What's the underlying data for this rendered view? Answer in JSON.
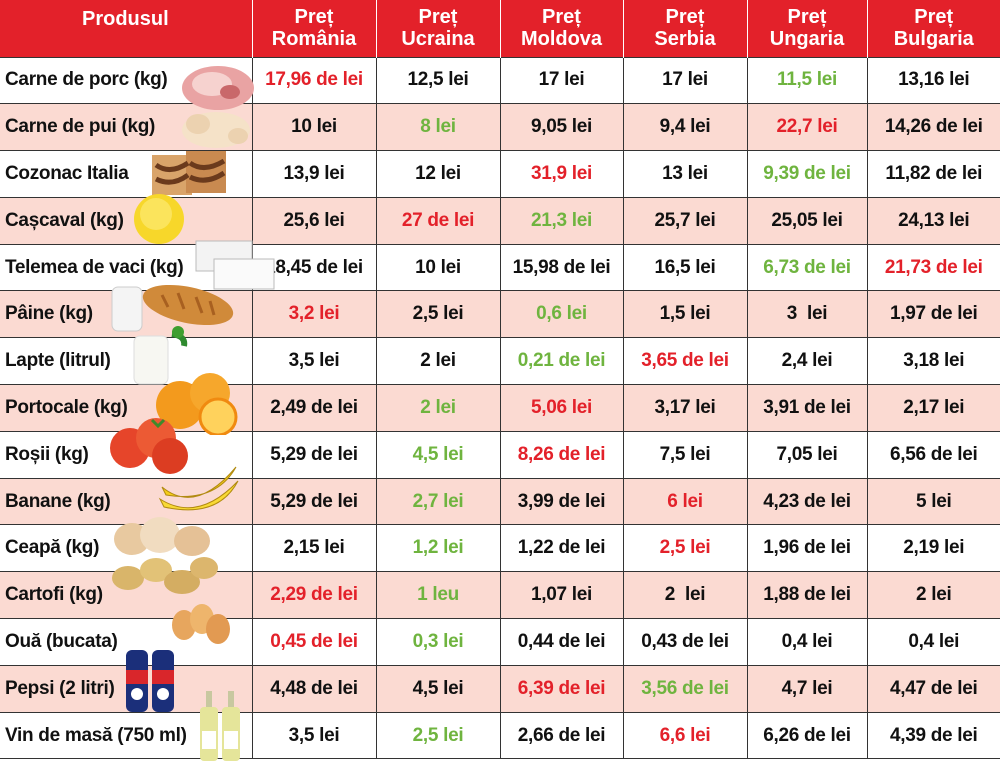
{
  "header": {
    "product_label": "Produsul",
    "columns": [
      {
        "line1": "Preț",
        "line2": "România"
      },
      {
        "line1": "Preț",
        "line2": "Ucraina"
      },
      {
        "line1": "Preț",
        "line2": "Moldova"
      },
      {
        "line1": "Preț",
        "line2": "Serbia"
      },
      {
        "line1": "Preț",
        "line2": "Ungaria"
      },
      {
        "line1": "Preț",
        "line2": "Bulgaria"
      }
    ]
  },
  "colors": {
    "header_bg": "#e3212a",
    "stripe": "#fbdad2",
    "max_price": "#e3212a",
    "min_price": "#6fb43f"
  },
  "rows": [
    {
      "product": "Carne de porc (kg)",
      "icon": "pork-meat-icon",
      "prices": [
        {
          "text": "17,96 de lei",
          "hl": "red"
        },
        {
          "text": "12,5 lei",
          "hl": ""
        },
        {
          "text": "17 lei",
          "hl": ""
        },
        {
          "text": "17 lei",
          "hl": ""
        },
        {
          "text": "11,5 lei",
          "hl": "green"
        },
        {
          "text": "13,16 lei",
          "hl": ""
        }
      ]
    },
    {
      "product": "Carne de pui (kg)",
      "icon": "chicken-icon",
      "prices": [
        {
          "text": "10 lei",
          "hl": ""
        },
        {
          "text": "8 lei",
          "hl": "green"
        },
        {
          "text": "9,05 lei",
          "hl": ""
        },
        {
          "text": "9,4 lei",
          "hl": ""
        },
        {
          "text": "22,7 lei",
          "hl": "red"
        },
        {
          "text": "14,26 de lei",
          "hl": ""
        }
      ]
    },
    {
      "product": "Cozonac Italia",
      "icon": "cozonac-icon",
      "prices": [
        {
          "text": "13,9 lei",
          "hl": ""
        },
        {
          "text": "12 lei",
          "hl": ""
        },
        {
          "text": "31,9 lei",
          "hl": "red"
        },
        {
          "text": "13 lei",
          "hl": ""
        },
        {
          "text": "9,39 de lei",
          "hl": "green"
        },
        {
          "text": "11,82 de lei",
          "hl": ""
        }
      ]
    },
    {
      "product": "Cașcaval (kg)",
      "icon": "cheese-icon",
      "prices": [
        {
          "text": "25,6 lei",
          "hl": ""
        },
        {
          "text": "27 de lei",
          "hl": "red"
        },
        {
          "text": "21,3 lei",
          "hl": "green"
        },
        {
          "text": "25,7 lei",
          "hl": ""
        },
        {
          "text": "25,05 lei",
          "hl": ""
        },
        {
          "text": "24,13 lei",
          "hl": ""
        }
      ]
    },
    {
      "product": "Telemea de vaci (kg)",
      "icon": "telemea-icon",
      "prices": [
        {
          "text": "18,45 de lei",
          "hl": ""
        },
        {
          "text": "10 lei",
          "hl": ""
        },
        {
          "text": "15,98 de lei",
          "hl": ""
        },
        {
          "text": "16,5 lei",
          "hl": ""
        },
        {
          "text": "6,73 de lei",
          "hl": "green"
        },
        {
          "text": "21,73 de lei",
          "hl": "red"
        }
      ]
    },
    {
      "product": "Pâine (kg)",
      "icon": "bread-icon",
      "prices": [
        {
          "text": "3,2 lei",
          "hl": "red"
        },
        {
          "text": "2,5 lei",
          "hl": ""
        },
        {
          "text": "0,6 lei",
          "hl": "green"
        },
        {
          "text": "1,5 lei",
          "hl": ""
        },
        {
          "text": "3  lei",
          "hl": ""
        },
        {
          "text": "1,97 de lei",
          "hl": ""
        }
      ]
    },
    {
      "product": "Lapte (litrul)",
      "icon": "milk-icon",
      "prices": [
        {
          "text": "3,5 lei",
          "hl": ""
        },
        {
          "text": "2 lei",
          "hl": ""
        },
        {
          "text": "0,21 de lei",
          "hl": "green"
        },
        {
          "text": "3,65 de lei",
          "hl": "red"
        },
        {
          "text": "2,4 lei",
          "hl": ""
        },
        {
          "text": "3,18 lei",
          "hl": ""
        }
      ]
    },
    {
      "product": "Portocale (kg)",
      "icon": "orange-icon",
      "prices": [
        {
          "text": "2,49 de lei",
          "hl": ""
        },
        {
          "text": "2 lei",
          "hl": "green"
        },
        {
          "text": "5,06 lei",
          "hl": "red"
        },
        {
          "text": "3,17 lei",
          "hl": ""
        },
        {
          "text": "3,91 de lei",
          "hl": ""
        },
        {
          "text": "2,17 lei",
          "hl": ""
        }
      ]
    },
    {
      "product": "Roșii (kg)",
      "icon": "tomato-icon",
      "prices": [
        {
          "text": "5,29 de lei",
          "hl": ""
        },
        {
          "text": "4,5 lei",
          "hl": "green"
        },
        {
          "text": "8,26 de lei",
          "hl": "red"
        },
        {
          "text": "7,5 lei",
          "hl": ""
        },
        {
          "text": "7,05 lei",
          "hl": ""
        },
        {
          "text": "6,56 de lei",
          "hl": ""
        }
      ]
    },
    {
      "product": "Banane (kg)",
      "icon": "banana-icon",
      "prices": [
        {
          "text": "5,29 de lei",
          "hl": ""
        },
        {
          "text": "2,7 lei",
          "hl": "green"
        },
        {
          "text": "3,99 de lei",
          "hl": ""
        },
        {
          "text": "6 lei",
          "hl": "red"
        },
        {
          "text": "4,23 de lei",
          "hl": ""
        },
        {
          "text": "5 lei",
          "hl": ""
        }
      ]
    },
    {
      "product": "Ceapă (kg)",
      "icon": "onion-icon",
      "prices": [
        {
          "text": "2,15 lei",
          "hl": ""
        },
        {
          "text": "1,2 lei",
          "hl": "green"
        },
        {
          "text": "1,22 de lei",
          "hl": ""
        },
        {
          "text": "2,5 lei",
          "hl": "red"
        },
        {
          "text": "1,96 de lei",
          "hl": ""
        },
        {
          "text": "2,19 lei",
          "hl": ""
        }
      ]
    },
    {
      "product": "Cartofi (kg)",
      "icon": "potato-icon",
      "prices": [
        {
          "text": "2,29 de lei",
          "hl": "red"
        },
        {
          "text": "1 leu",
          "hl": "green"
        },
        {
          "text": "1,07 lei",
          "hl": ""
        },
        {
          "text": "2  lei",
          "hl": ""
        },
        {
          "text": "1,88 de lei",
          "hl": ""
        },
        {
          "text": "2 lei",
          "hl": ""
        }
      ]
    },
    {
      "product": "Ouă (bucata)",
      "icon": "eggs-icon",
      "prices": [
        {
          "text": "0,45 de lei",
          "hl": "red"
        },
        {
          "text": "0,3 lei",
          "hl": "green"
        },
        {
          "text": "0,44 de lei",
          "hl": ""
        },
        {
          "text": "0,43 de lei",
          "hl": ""
        },
        {
          "text": "0,4 lei",
          "hl": ""
        },
        {
          "text": "0,4 lei",
          "hl": ""
        }
      ]
    },
    {
      "product": "Pepsi (2 litri)",
      "icon": "pepsi-bottles-icon",
      "prices": [
        {
          "text": "4,48 de lei",
          "hl": ""
        },
        {
          "text": "4,5 lei",
          "hl": ""
        },
        {
          "text": "6,39 de lei",
          "hl": "red"
        },
        {
          "text": "3,56 de lei",
          "hl": "green"
        },
        {
          "text": "4,7 lei",
          "hl": ""
        },
        {
          "text": "4,47 de lei",
          "hl": ""
        }
      ]
    },
    {
      "product": "Vin de masă (750 ml)",
      "icon": "wine-bottles-icon",
      "prices": [
        {
          "text": "3,5 lei",
          "hl": ""
        },
        {
          "text": "2,5 lei",
          "hl": "green"
        },
        {
          "text": "2,66 de lei",
          "hl": ""
        },
        {
          "text": "6,6 lei",
          "hl": "red"
        },
        {
          "text": "6,26 de lei",
          "hl": ""
        },
        {
          "text": "4,39 de lei",
          "hl": ""
        }
      ]
    }
  ]
}
